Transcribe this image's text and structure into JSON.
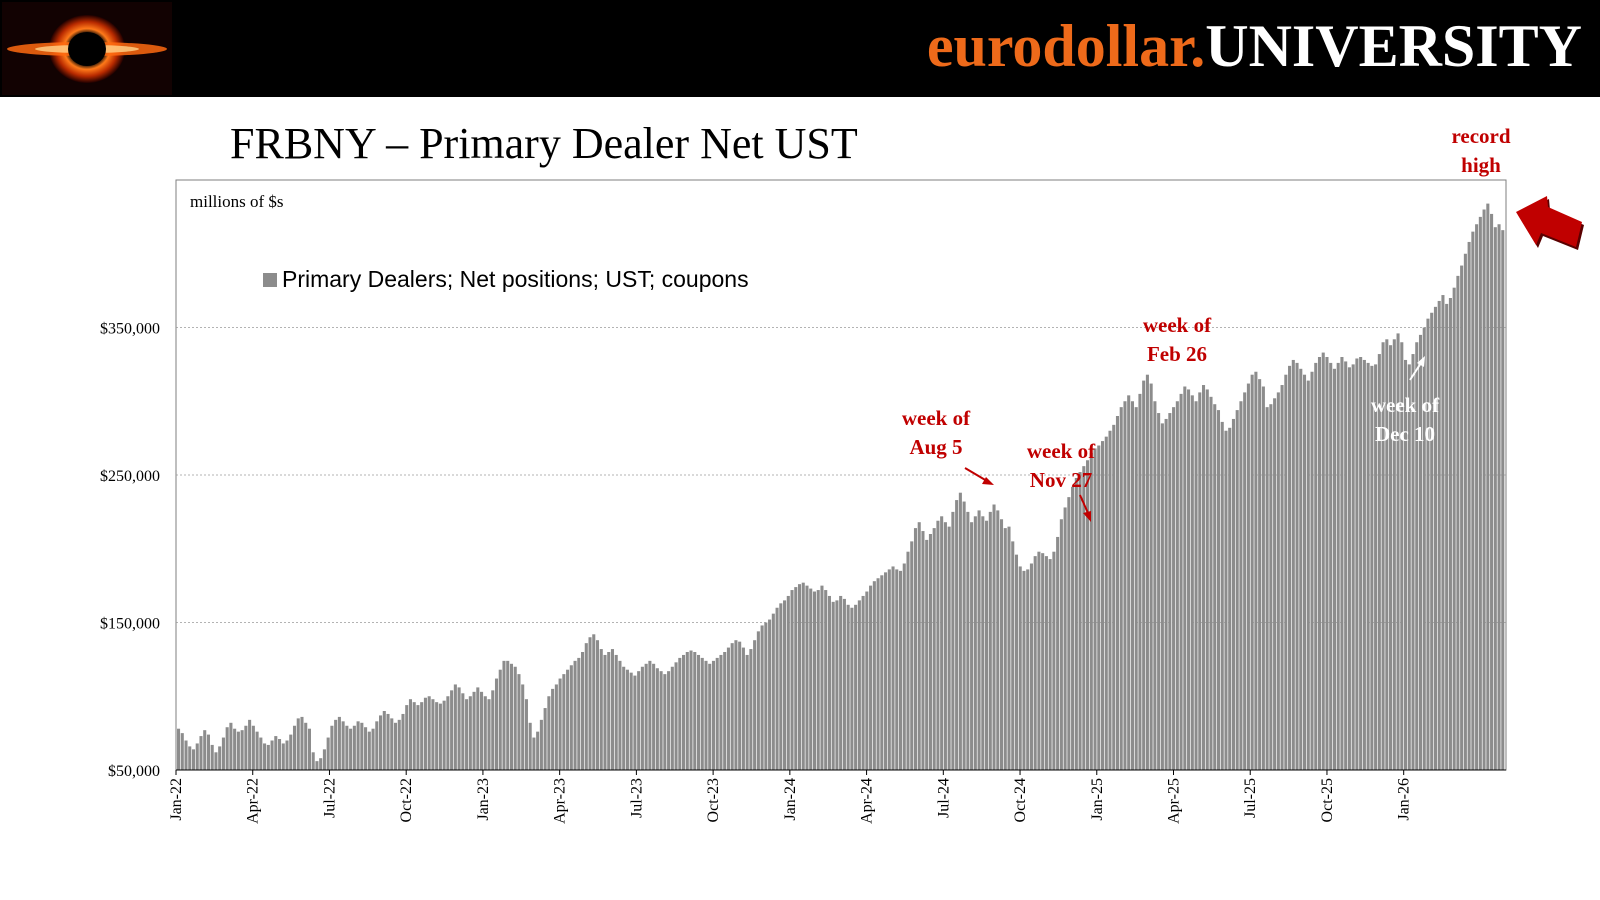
{
  "header": {
    "brand_part1": "eurodollar.",
    "brand_part2": "UNIVERSITY",
    "logo": "black-hole-logo",
    "colors": {
      "brand_orange": "#ee6a1a",
      "banner_bg": "#000000"
    }
  },
  "slide": {
    "title": "FRBNY – Primary Dealer Net UST"
  },
  "chart_data": {
    "type": "bar",
    "title": "FRBNY – Primary Dealer Net UST",
    "unit_label": "millions of $s",
    "legend": {
      "label": "Primary Dealers; Net positions; UST; coupons",
      "placement": "top-left"
    },
    "ylim": [
      50000,
      450000
    ],
    "yticks": [
      50000,
      150000,
      250000,
      350000
    ],
    "ytick_labels": [
      "$50,000",
      "$150,000",
      "$250,000",
      "$350,000"
    ],
    "grid": true,
    "x_start_month": "2022-01",
    "x_end_month": "2026-04",
    "xtick_labels": [
      "Jan-22",
      "Apr-22",
      "Jul-22",
      "Oct-22",
      "Jan-23",
      "Apr-23",
      "Jul-23",
      "Oct-23",
      "Jan-24",
      "Apr-24",
      "Jul-24",
      "Oct-24",
      "Jan-25",
      "Apr-25",
      "Jul-25",
      "Oct-25",
      "Jan-26"
    ],
    "series": [
      {
        "name": "Primary Dealers; Net positions; UST; coupons",
        "color": "#8c8c8c",
        "frequency": "weekly",
        "values": [
          78000,
          75000,
          70000,
          66000,
          64000,
          68000,
          73000,
          77000,
          74000,
          67000,
          62000,
          66000,
          72000,
          79000,
          82000,
          78000,
          76000,
          77000,
          80000,
          84000,
          80000,
          76000,
          72000,
          68000,
          67000,
          70000,
          73000,
          71000,
          68000,
          70000,
          74000,
          80000,
          85000,
          86000,
          82000,
          78000,
          62000,
          56000,
          58000,
          64000,
          72000,
          80000,
          84000,
          86000,
          83000,
          80000,
          78000,
          80000,
          83000,
          82000,
          79000,
          76000,
          78000,
          83000,
          87000,
          90000,
          88000,
          85000,
          82000,
          84000,
          88000,
          94000,
          98000,
          96000,
          94000,
          96000,
          99000,
          100000,
          98000,
          96000,
          95000,
          97000,
          100000,
          104000,
          108000,
          106000,
          102000,
          98000,
          100000,
          103000,
          106000,
          103000,
          100000,
          98000,
          104000,
          112000,
          118000,
          124000,
          124000,
          122000,
          120000,
          115000,
          108000,
          98000,
          82000,
          72000,
          76000,
          84000,
          92000,
          100000,
          105000,
          108000,
          112000,
          115000,
          118000,
          121000,
          124000,
          126000,
          130000,
          136000,
          140000,
          142000,
          138000,
          132000,
          128000,
          130000,
          132000,
          128000,
          124000,
          120000,
          118000,
          116000,
          114000,
          117000,
          120000,
          122000,
          124000,
          122000,
          119000,
          117000,
          115000,
          117000,
          120000,
          123000,
          126000,
          128000,
          130000,
          131000,
          130000,
          128000,
          126000,
          124000,
          122000,
          124000,
          126000,
          128000,
          130000,
          133000,
          136000,
          138000,
          137000,
          133000,
          128000,
          132000,
          138000,
          144000,
          148000,
          150000,
          152000,
          156000,
          160000,
          163000,
          165000,
          168000,
          172000,
          174000,
          176000,
          177000,
          175000,
          173000,
          171000,
          172000,
          175000,
          172000,
          168000,
          164000,
          165000,
          168000,
          166000,
          162000,
          160000,
          162000,
          165000,
          168000,
          171000,
          175000,
          178000,
          180000,
          182000,
          184000,
          186000,
          188000,
          186000,
          185000,
          190000,
          198000,
          205000,
          214000,
          218000,
          212000,
          206000,
          210000,
          214000,
          219000,
          222000,
          218000,
          215000,
          225000,
          233000,
          238000,
          232000,
          225000,
          218000,
          222000,
          226000,
          222000,
          219000,
          225000,
          230000,
          226000,
          220000,
          214000,
          215000,
          205000,
          196000,
          188000,
          185000,
          186000,
          190000,
          195000,
          198000,
          197000,
          195000,
          193000,
          198000,
          208000,
          220000,
          228000,
          235000,
          242000,
          248000,
          252000,
          256000,
          260000,
          265000,
          268000,
          270000,
          273000,
          276000,
          280000,
          284000,
          290000,
          296000,
          300000,
          304000,
          300000,
          296000,
          305000,
          314000,
          318000,
          312000,
          300000,
          292000,
          285000,
          288000,
          292000,
          296000,
          300000,
          305000,
          310000,
          308000,
          304000,
          300000,
          306000,
          311000,
          308000,
          303000,
          298000,
          294000,
          286000,
          280000,
          282000,
          288000,
          294000,
          300000,
          306000,
          312000,
          318000,
          320000,
          315000,
          310000,
          296000,
          298000,
          302000,
          306000,
          311000,
          318000,
          324000,
          328000,
          326000,
          322000,
          318000,
          314000,
          320000,
          326000,
          330000,
          333000,
          330000,
          326000,
          322000,
          326000,
          330000,
          327000,
          323000,
          325000,
          329000,
          330000,
          328000,
          326000,
          324000,
          325000,
          332000,
          340000,
          342000,
          338000,
          342000,
          346000,
          340000,
          328000,
          325000,
          332000,
          340000,
          345000,
          350000,
          356000,
          360000,
          364000,
          368000,
          372000,
          366000,
          370000,
          377000,
          385000,
          392000,
          400000,
          408000,
          415000,
          420000,
          425000,
          430000,
          434000,
          427000,
          418000,
          420000,
          416000
        ]
      }
    ],
    "annotations": [
      {
        "text": "week of Aug 5",
        "line1": "week of",
        "line2": "Aug 5",
        "color": "#c00000"
      },
      {
        "text": "week of Nov 27",
        "line1": "week of",
        "line2": "Nov 27",
        "color": "#c00000"
      },
      {
        "text": "week of Feb 26",
        "line1": "week of",
        "line2": "Feb 26",
        "color": "#c00000"
      },
      {
        "text": "week of Dec 10",
        "line1": "week of",
        "line2": "Dec 10",
        "color": "#ffffff"
      },
      {
        "text": "record high",
        "line1": "record",
        "line2": "high",
        "color": "#c00000"
      }
    ]
  }
}
